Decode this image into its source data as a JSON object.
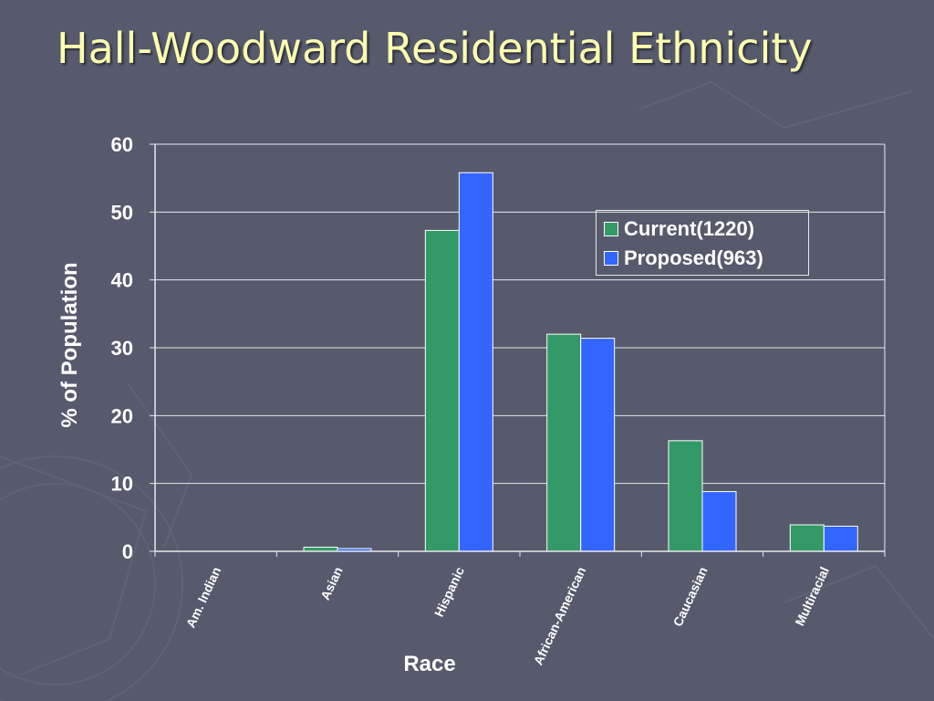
{
  "slide": {
    "title": "Hall-Woodward Residential Ethnicity"
  },
  "chart_data": {
    "type": "bar",
    "title": "",
    "xlabel": "Race",
    "ylabel": "% of Population",
    "categories": [
      "Am. Indian",
      "Asian",
      "Hispanic",
      "African-American",
      "Caucasian",
      "Multiracial"
    ],
    "series": [
      {
        "name": "Current(1220)",
        "values": [
          0,
          0.6,
          47.3,
          32.0,
          16.3,
          3.9
        ],
        "color": "#339966"
      },
      {
        "name": "Proposed(963)",
        "values": [
          0,
          0.4,
          55.8,
          31.4,
          8.8,
          3.7
        ],
        "color": "#3366ff"
      }
    ],
    "ylim": [
      0,
      60
    ],
    "yticks": [
      "0",
      "10",
      "20",
      "30",
      "40",
      "50",
      "60"
    ],
    "grid": true,
    "legend_position": "top-right",
    "colors": {
      "text": "#ffffff",
      "grid": "#e8e8ec",
      "title": "#ffffb0",
      "background": "#565a6c"
    }
  }
}
